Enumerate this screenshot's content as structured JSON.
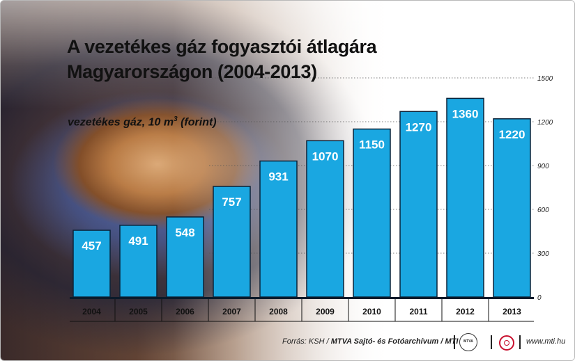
{
  "title_line1": "A vezetékes gáz fogyasztói átlagára",
  "title_line2": "Magyarországon (2004-2013)",
  "unit_label": "vezetékes gáz, 10 m",
  "unit_sup": "3",
  "unit_suffix": " (forint)",
  "footer": {
    "source_prefix": "Forrás: KSH / ",
    "source_bold": "MTVA Sajtó- és Fotóarchívum / MTI",
    "logo_text": "MTVA",
    "url": "www.mti.hu"
  },
  "colors": {
    "bar": "#1aa7e1",
    "bar_edge": "#0b2238",
    "label": "#ffffff",
    "grid": "#555555"
  },
  "chart_data": {
    "type": "bar",
    "categories": [
      "2004",
      "2005",
      "2006",
      "2007",
      "2008",
      "2009",
      "2010",
      "2011",
      "2012",
      "2013"
    ],
    "values": [
      457,
      491,
      548,
      757,
      931,
      1070,
      1150,
      1270,
      1360,
      1220
    ],
    "yticks": [
      0,
      300,
      600,
      900,
      1200,
      1500
    ],
    "ylim": [
      0,
      1500
    ],
    "title": "A vezetékes gáz fogyasztói átlagára Magyarországon (2004-2013)",
    "ylabel": "vezetékes gáz, 10 m3 (forint)",
    "grid": true,
    "axis_side": "right"
  }
}
